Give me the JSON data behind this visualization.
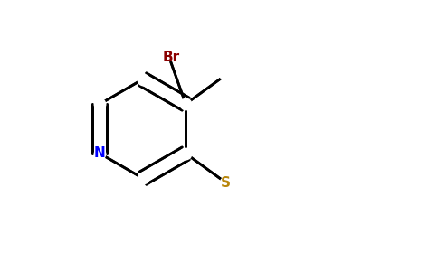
{
  "background_color": "#ffffff",
  "atom_colors": {
    "C": "#000000",
    "N": "#0000ff",
    "O": "#ff0000",
    "S": "#b8860b",
    "Br": "#8b0000"
  },
  "bond_color": "#000000",
  "bond_width": 2.0,
  "dbo": 0.08,
  "figsize": [
    4.84,
    3.0
  ],
  "dpi": 100
}
